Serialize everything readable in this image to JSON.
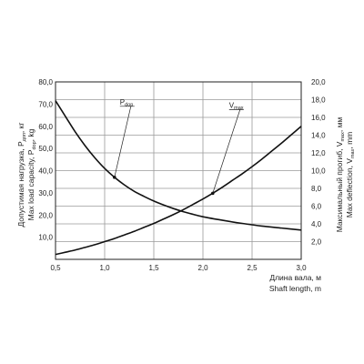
{
  "chart_data": {
    "type": "line",
    "grid": true,
    "x": {
      "label_ru": "Длина вала, м",
      "label_en": "Shaft length, m",
      "range": [
        0.5,
        3.0
      ],
      "ticks": [
        "0,5",
        "1,0",
        "1,5",
        "2,0",
        "2,5",
        "3,0"
      ],
      "tick_values": [
        0.5,
        1.0,
        1.5,
        2.0,
        2.5,
        3.0
      ]
    },
    "y_left": {
      "label_ru_main": "Допустимая нагрузка, P",
      "label_ru_sub": "доп",
      "label_ru_unit": ", кг",
      "label_en_main": "Max load capacity, P",
      "label_en_sub": "dop",
      "label_en_unit": ", kg",
      "range": [
        0,
        80
      ],
      "ticks": [
        "10,0",
        "20,0",
        "30,0",
        "40,0",
        "50,0",
        "60,0",
        "70,0",
        "80,0"
      ],
      "tick_values": [
        10,
        20,
        30,
        40,
        50,
        60,
        70,
        80
      ]
    },
    "y_right": {
      "label_ru_main": "Максимальный прогиб, V",
      "label_ru_sub": "max",
      "label_ru_unit": ", мм",
      "label_en_main": "Max deflection, V",
      "label_en_sub": "max",
      "label_en_unit": ", mm",
      "range": [
        0,
        20
      ],
      "ticks": [
        "2,0",
        "4,0",
        "6,0",
        "8,0",
        "10,0",
        "12,0",
        "14,0",
        "16,0",
        "18,0",
        "20,0"
      ],
      "tick_values": [
        2,
        4,
        6,
        8,
        10,
        12,
        14,
        16,
        18,
        20
      ]
    },
    "series": [
      {
        "name_main": "P",
        "name_sub": "dop",
        "axis": "left",
        "x": [
          0.5,
          0.6,
          0.7,
          0.8,
          0.9,
          1.0,
          1.1,
          1.2,
          1.3,
          1.4,
          1.5,
          1.6,
          1.7,
          1.8,
          1.9,
          2.0,
          2.2,
          2.4,
          2.6,
          2.8,
          3.0
        ],
        "y": [
          71.5,
          64.5,
          57.5,
          51.3,
          45.8,
          41.0,
          37.0,
          33.6,
          30.7,
          28.4,
          26.3,
          24.5,
          22.9,
          21.5,
          20.3,
          19.2,
          17.6,
          16.2,
          15.0,
          14.1,
          13.2
        ],
        "callout_x": 1.1
      },
      {
        "name_main": "V",
        "name_sub": "max",
        "axis": "right",
        "x": [
          0.5,
          0.6,
          0.7,
          0.8,
          0.9,
          1.0,
          1.1,
          1.2,
          1.3,
          1.4,
          1.5,
          1.6,
          1.7,
          1.8,
          1.9,
          2.0,
          2.1,
          2.2,
          2.3,
          2.4,
          2.5,
          2.6,
          2.7,
          2.8,
          2.9,
          3.0
        ],
        "y": [
          0.55,
          0.8,
          1.05,
          1.35,
          1.65,
          2.0,
          2.35,
          2.75,
          3.15,
          3.6,
          4.05,
          4.55,
          5.05,
          5.6,
          6.2,
          6.8,
          7.45,
          8.15,
          8.9,
          9.65,
          10.45,
          11.3,
          12.2,
          13.1,
          14.05,
          15.0
        ],
        "callout_x": 2.1
      }
    ]
  }
}
